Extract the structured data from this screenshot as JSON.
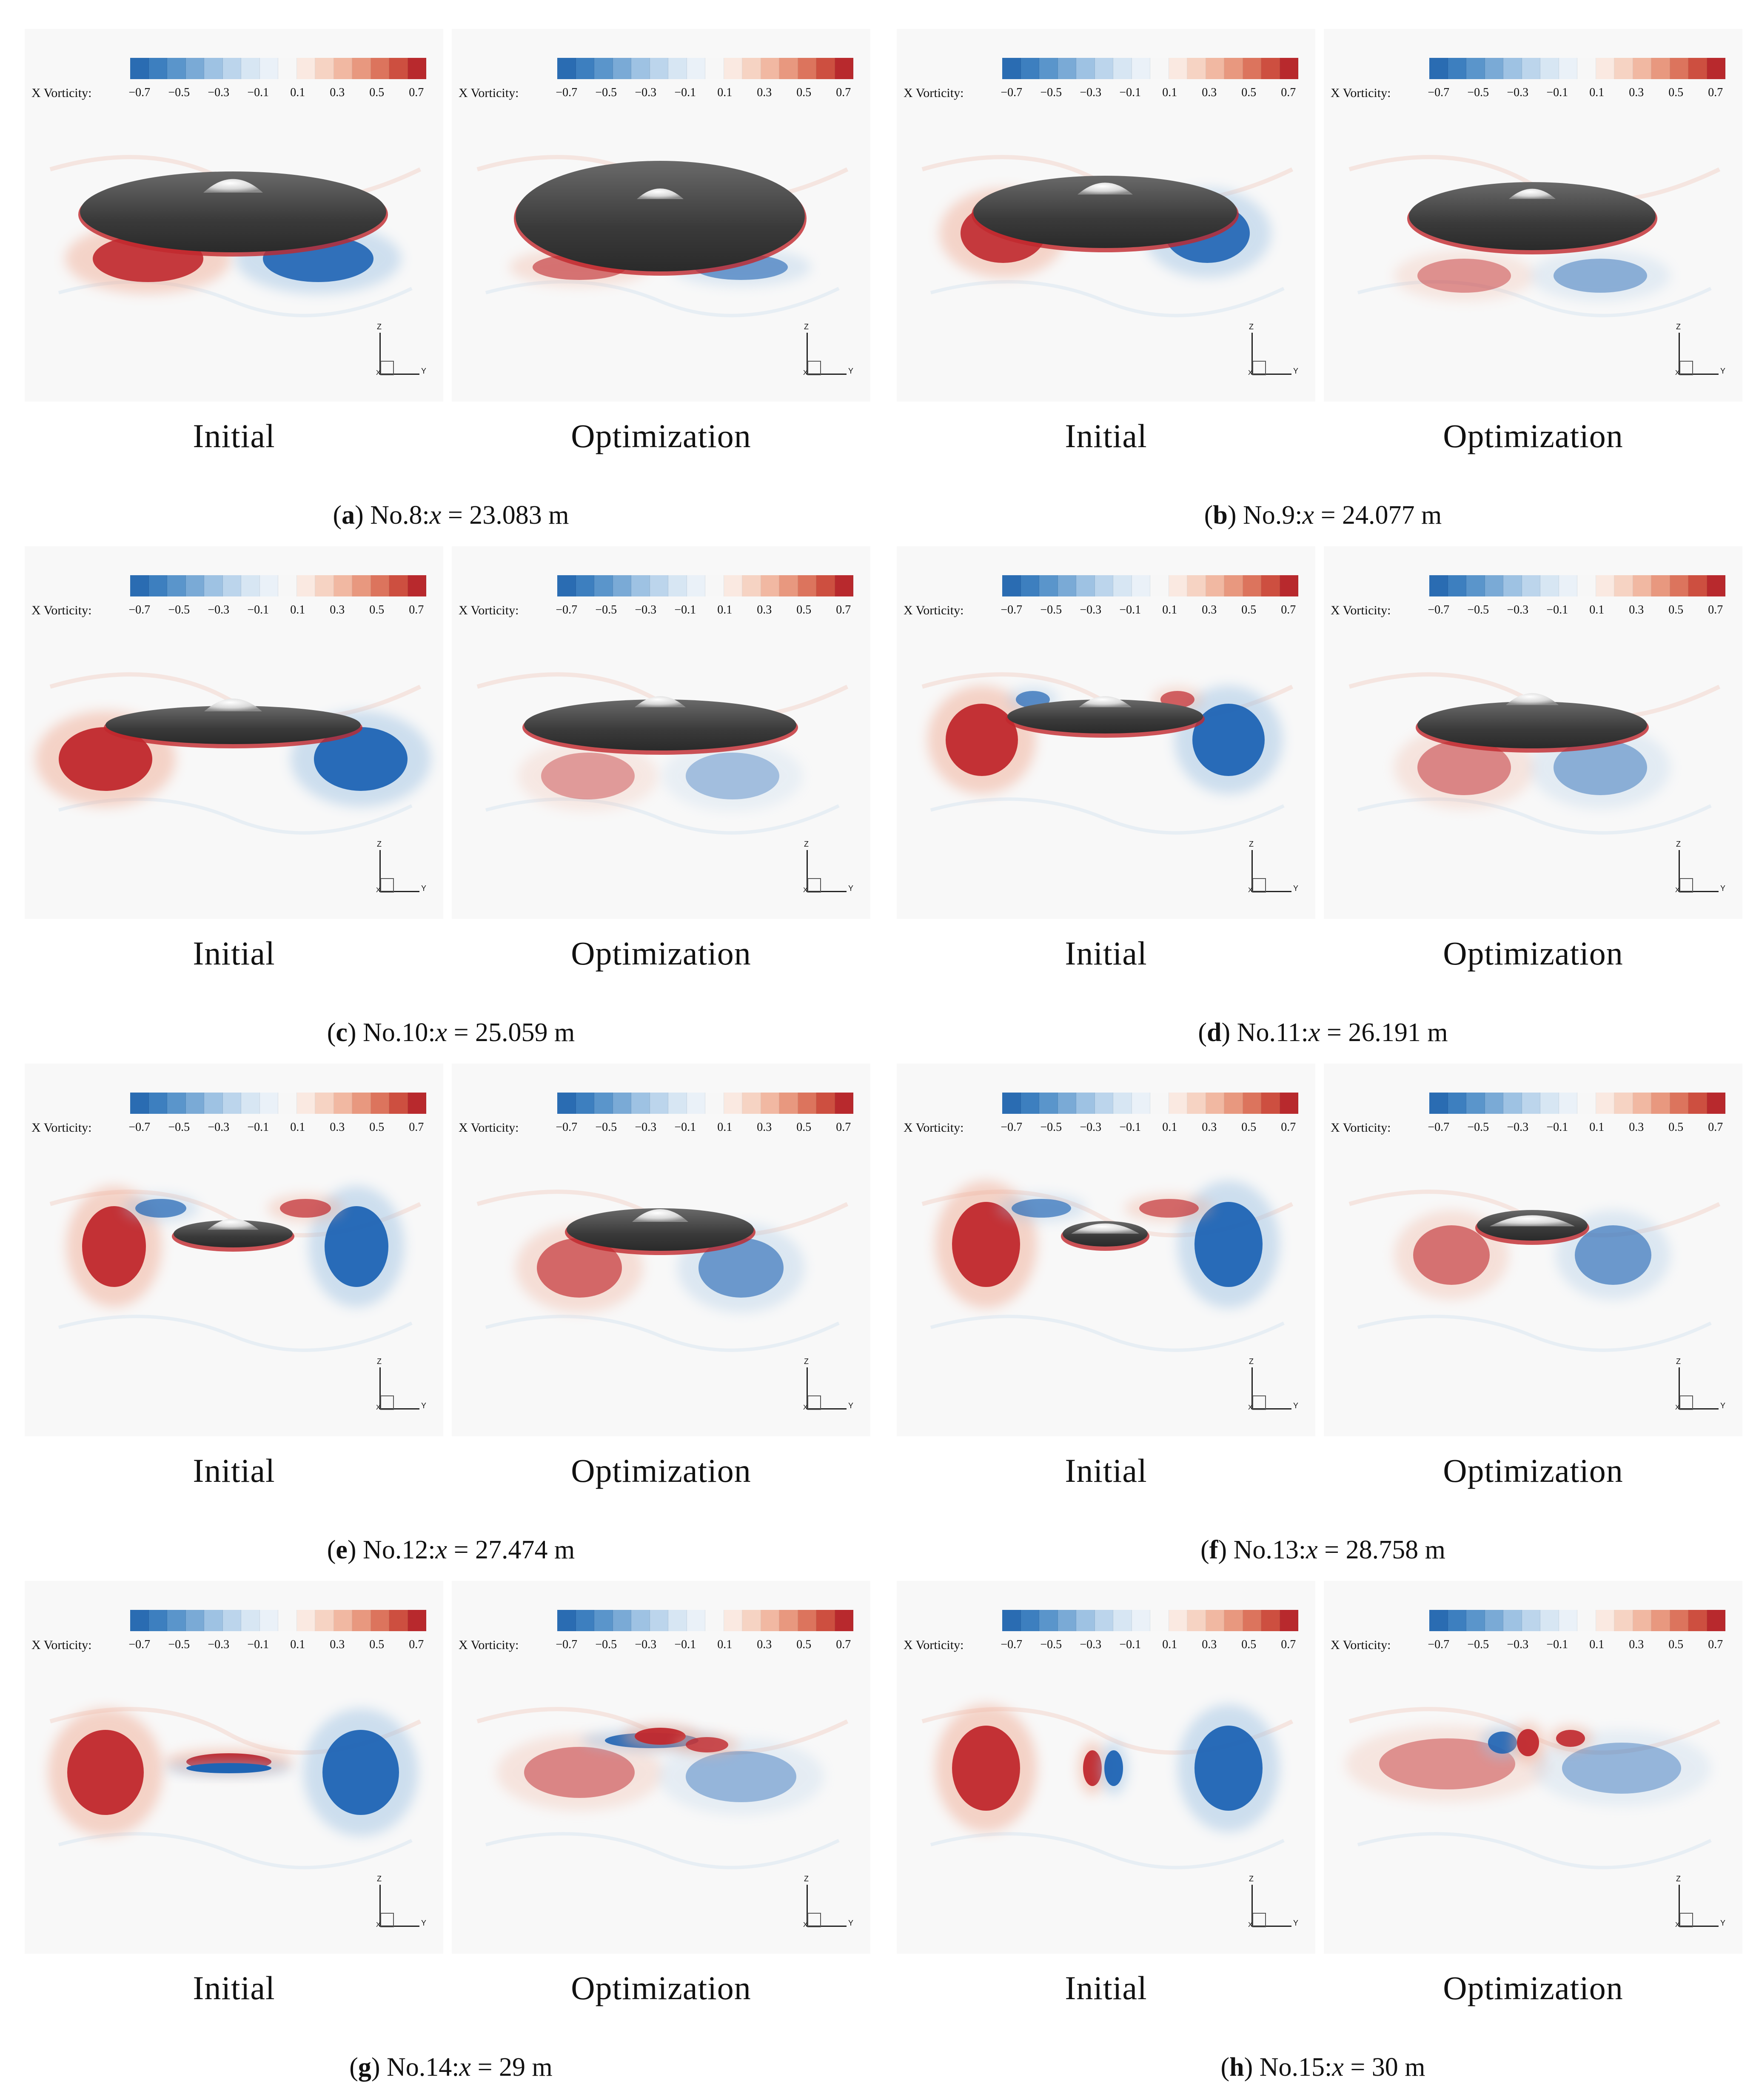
{
  "colorbar": {
    "label": "X Vorticity:",
    "ticks": [
      "−0.7",
      "−0.5",
      "−0.3",
      "−0.1",
      "0.1",
      "0.3",
      "0.5",
      "0.7"
    ],
    "colors": [
      "#2a6cb2",
      "#3d7fbf",
      "#5a95cb",
      "#7aaad6",
      "#9ec2e3",
      "#bcd5ec",
      "#d7e6f3",
      "#eaf1f8",
      "#f7f7f7",
      "#fae9e1",
      "#f6d3c3",
      "#f1b8a2",
      "#e8987f",
      "#dc745d",
      "#cd4f40",
      "#b8292d"
    ],
    "vorticity_red": "#c0282d",
    "vorticity_blue": "#1f64b4"
  },
  "axis_labels": {
    "z": "Z",
    "y": "Y",
    "x": "X"
  },
  "panel_labels": {
    "initial": "Initial",
    "optimization": "Optimization"
  },
  "figures": [
    {
      "letter": "a",
      "prefix": "No.8:",
      "var": "x",
      "eq": " = ",
      "value": "23.083 m"
    },
    {
      "letter": "b",
      "prefix": "No.9:",
      "var": "x",
      "eq": " = ",
      "value": "24.077 m"
    },
    {
      "letter": "c",
      "prefix": "No.10:",
      "var": "x",
      "eq": " = ",
      "value": "25.059 m"
    },
    {
      "letter": "d",
      "prefix": "No.11:",
      "var": "x",
      "eq": " = ",
      "value": "26.191 m"
    },
    {
      "letter": "e",
      "prefix": "No.12:",
      "var": "x",
      "eq": " = ",
      "value": "27.474 m"
    },
    {
      "letter": "f",
      "prefix": "No.13:",
      "var": "x",
      "eq": " = ",
      "value": "28.758 m"
    },
    {
      "letter": "g",
      "prefix": "No.14:",
      "var": "x",
      "eq": " = ",
      "value": "29 m"
    },
    {
      "letter": "h",
      "prefix": "No.15:",
      "var": "x",
      "eq": " = ",
      "value": "30 m"
    }
  ]
}
